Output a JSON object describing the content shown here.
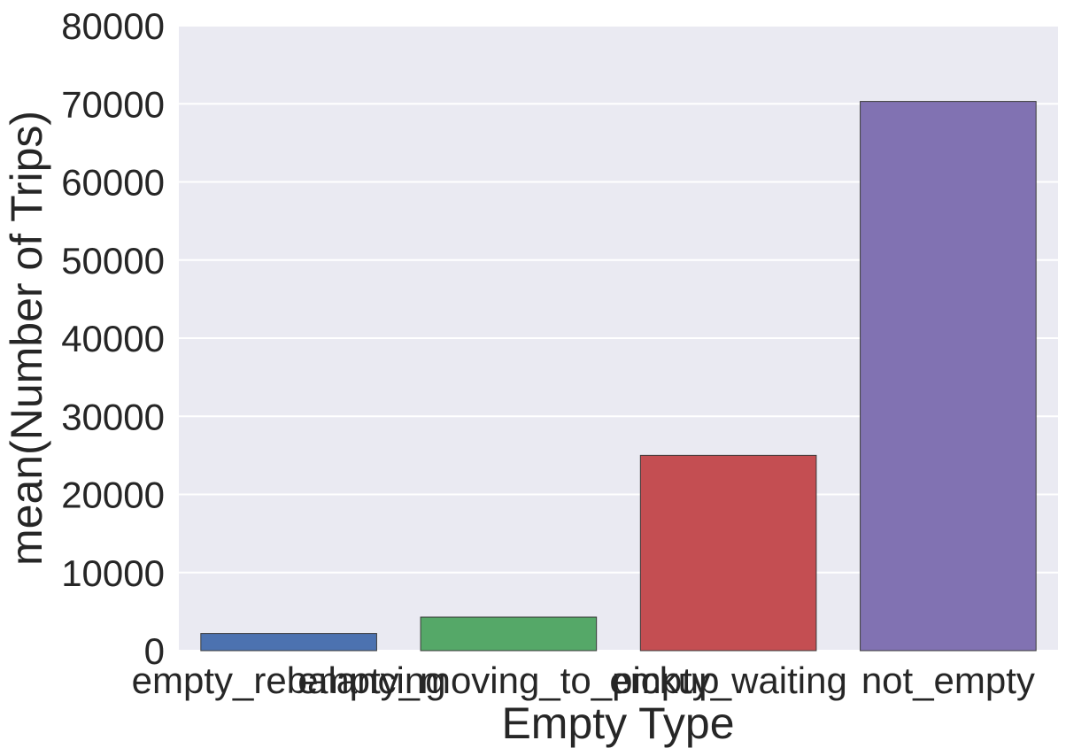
{
  "chart_data": {
    "type": "bar",
    "title": "",
    "xlabel": "Empty Type",
    "ylabel": "mean(Number of Trips)",
    "ylim": [
      0,
      80000
    ],
    "yticks": [
      "0",
      "10000",
      "20000",
      "30000",
      "40000",
      "50000",
      "60000",
      "70000",
      "80000"
    ],
    "categories": [
      "empty_rebalancing",
      "empty_moving_to_pickup",
      "empty_waiting",
      "not_empty"
    ],
    "values": [
      2200,
      4300,
      25000,
      70300
    ],
    "colors": [
      "#4c72b0",
      "#55a868",
      "#c44e52",
      "#8172b2"
    ],
    "background_color": "#eaeaf2",
    "grid": true
  }
}
